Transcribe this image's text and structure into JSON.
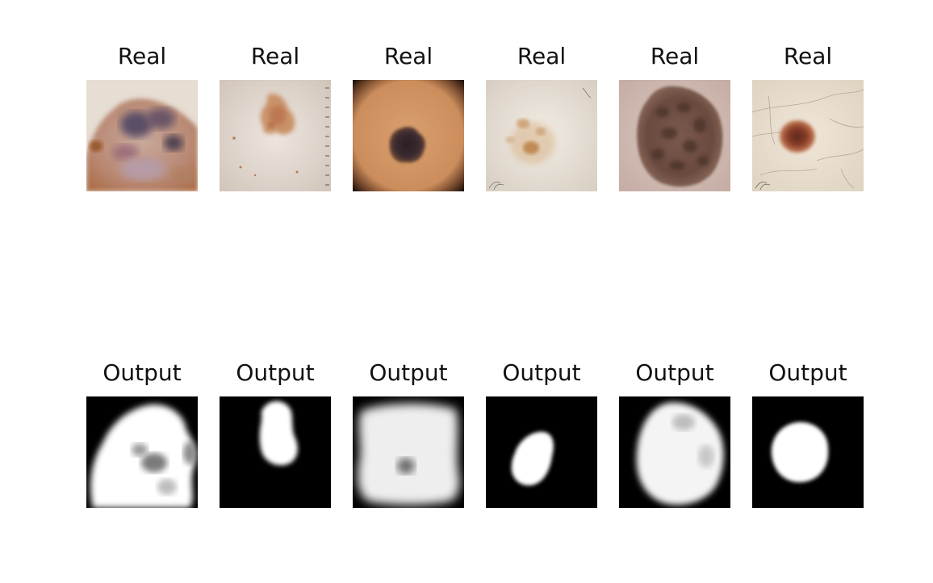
{
  "panels": {
    "real": [
      {
        "title": "Real",
        "image": "dermoscopy image of brown lesion with dark purple-grey patches"
      },
      {
        "title": "Real",
        "image": "dermoscopy image of faint reddish-brown lesion with ruler marks"
      },
      {
        "title": "Real",
        "image": "dermoscopy image of small dark mole on tan skin with dark vignette"
      },
      {
        "title": "Real",
        "image": "dermoscopy image of faint light brown lesion"
      },
      {
        "title": "Real",
        "image": "dermoscopy image of large dark brown lesion"
      },
      {
        "title": "Real",
        "image": "dermoscopy image of small dark red-brown mole with fine hairs"
      }
    ],
    "output": [
      {
        "title": "Output",
        "image": "segmentation mask large irregular white region"
      },
      {
        "title": "Output",
        "image": "segmentation mask small vertical white blob"
      },
      {
        "title": "Output",
        "image": "segmentation mask nearly full white square with grey spot"
      },
      {
        "title": "Output",
        "image": "segmentation mask small white blob"
      },
      {
        "title": "Output",
        "image": "segmentation mask large oval white region"
      },
      {
        "title": "Output",
        "image": "segmentation mask round white blob"
      }
    ]
  },
  "colors": {
    "mask_background": "#000000",
    "mask_foreground": "#ffffff",
    "title_text": "#111111"
  }
}
